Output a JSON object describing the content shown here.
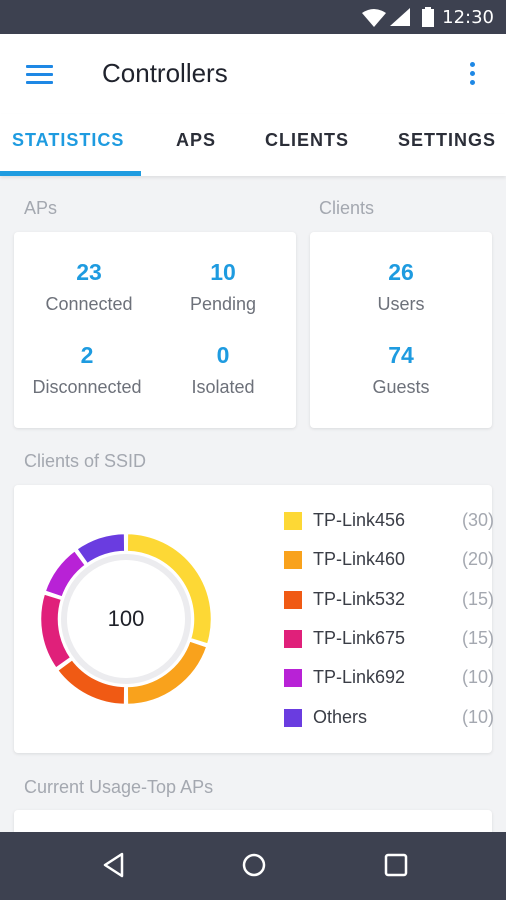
{
  "status_bar": {
    "time": "12:30"
  },
  "app_bar": {
    "title": "Controllers"
  },
  "tabs": [
    {
      "label": "STATISTICS",
      "active": true
    },
    {
      "label": "APS"
    },
    {
      "label": "CLIENTS"
    },
    {
      "label": "SETTINGS"
    }
  ],
  "aps": {
    "section_label": "APs",
    "connected": {
      "value": "23",
      "label": "Connected"
    },
    "pending": {
      "value": "10",
      "label": "Pending"
    },
    "disconnected": {
      "value": "2",
      "label": "Disconnected"
    },
    "isolated": {
      "value": "0",
      "label": "Isolated"
    }
  },
  "clients": {
    "section_label": "Clients",
    "users": {
      "value": "26",
      "label": "Users"
    },
    "guests": {
      "value": "74",
      "label": "Guests"
    }
  },
  "ssid": {
    "section_label": "Clients of SSID",
    "total": "100",
    "items": [
      {
        "name": "TP-Link456",
        "count": "(30)",
        "value": 30,
        "color": "#fdd835"
      },
      {
        "name": "TP-Link460",
        "count": "(20)",
        "value": 20,
        "color": "#f9a21c"
      },
      {
        "name": "TP-Link532",
        "count": "(15)",
        "value": 15,
        "color": "#f05a14"
      },
      {
        "name": "TP-Link675",
        "count": "(15)",
        "value": 15,
        "color": "#e0207a"
      },
      {
        "name": "TP-Link692",
        "count": "(10)",
        "value": 10,
        "color": "#b822d6"
      },
      {
        "name": "Others",
        "count": "(10)",
        "value": 10,
        "color": "#6a3ce0"
      }
    ]
  },
  "usage": {
    "section_label": "Current Usage-Top APs"
  },
  "colors": {
    "accent": "#1e9be0",
    "status_bar": "#3d4150"
  }
}
